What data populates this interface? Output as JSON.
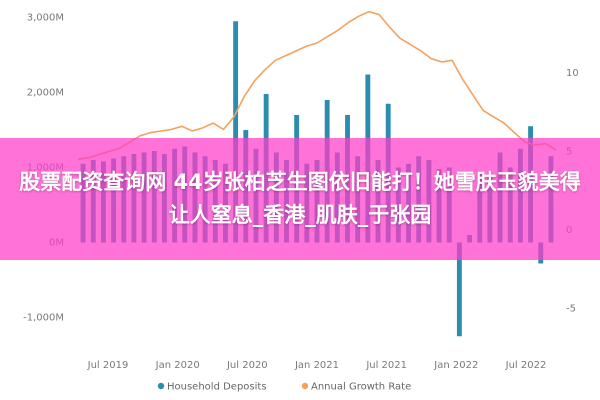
{
  "overlay": {
    "title": "股票配资查询网 44岁张柏芝生图依旧能打！她雪肤玉貌美得让人窒息_香港_肌肤_于张园"
  },
  "chart_data": {
    "type": "bar",
    "y_left_ticks": [
      "3,000M",
      "2,000M",
      "1,000M",
      "0M",
      "-1,000M"
    ],
    "y_left_values": [
      3000,
      2000,
      1000,
      0,
      -1000
    ],
    "y_right_ticks": [
      "10",
      "5",
      "0",
      "-5"
    ],
    "y_right_values": [
      10,
      5,
      0,
      -5
    ],
    "x_tick_labels": [
      "Jul 2019",
      "Jan 2020",
      "Jul 2020",
      "Jan 2021",
      "Jul 2021",
      "Jan 2022",
      "Jul 2022"
    ],
    "legend": [
      "Household Deposits",
      "Annual Growth Rate"
    ],
    "colors": {
      "bars": "#2b8cb0",
      "line": "#f5a25c",
      "axis_text": "#7a7a7a"
    },
    "ylim": [
      -1300,
      3100
    ],
    "y2lim": [
      -7,
      14
    ],
    "series": [
      {
        "name": "Household Deposits",
        "values": [
          1050,
          1100,
          1080,
          1120,
          1150,
          1180,
          1200,
          1220,
          1180,
          1250,
          1280,
          1200,
          1150,
          1100,
          1050,
          2950,
          1500,
          1250,
          1980,
          1200,
          1100,
          1700,
          1050,
          1100,
          1900,
          1200,
          1700,
          1150,
          2240,
          1100,
          1850,
          1000,
          1050,
          1150,
          1100,
          980,
          1000,
          -1250,
          100,
          950,
          900,
          1200,
          1000,
          1250,
          1550,
          -280,
          1150
        ]
      },
      {
        "name": "Annual Growth Rate",
        "values": [
          4.5,
          4.6,
          4.8,
          5.0,
          5.2,
          5.6,
          6.0,
          6.2,
          6.3,
          6.4,
          6.6,
          6.3,
          6.5,
          6.8,
          6.4,
          7.2,
          8.5,
          9.5,
          10.2,
          10.8,
          11.1,
          11.4,
          11.7,
          11.9,
          12.3,
          12.7,
          13.2,
          13.6,
          13.9,
          13.7,
          12.9,
          12.2,
          11.8,
          11.4,
          10.9,
          10.7,
          10.8,
          9.6,
          8.6,
          7.6,
          7.2,
          6.8,
          6.2,
          5.6,
          5.4,
          5.5,
          5.1
        ]
      }
    ]
  }
}
